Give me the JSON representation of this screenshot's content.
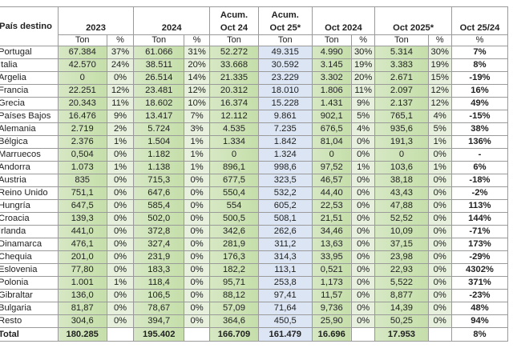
{
  "table": {
    "headers": {
      "country": "País destino",
      "y2023": "2023",
      "y2024": "2024",
      "acum24_line1": "Acum.",
      "acum24_line2": "Oct 24",
      "acum25_line1": "Acum.",
      "acum25_line2": "Oct 25*",
      "oct2024": "Oct 2024",
      "oct2025": "Oct 2025*",
      "var": "Oct 25/24"
    },
    "subheaders": {
      "ton": "Ton",
      "pct": "%"
    },
    "rows": [
      {
        "country": "Portugal",
        "t2023": "67.384",
        "p2023": "37%",
        "t2024": "61.066",
        "p2024": "31%",
        "acum24": "52.272",
        "acum25": "49.315",
        "toct24": "4.990",
        "poct24": "30%",
        "toct25": "5.314",
        "poct25": "30%",
        "var": "7%"
      },
      {
        "country": "Italia",
        "t2023": "42.570",
        "p2023": "24%",
        "t2024": "38.511",
        "p2024": "20%",
        "acum24": "33.668",
        "acum25": "30.592",
        "toct24": "3.145",
        "poct24": "19%",
        "toct25": "3.383",
        "poct25": "19%",
        "var": "8%"
      },
      {
        "country": "Argelia",
        "t2023": "0",
        "p2023": "0%",
        "t2024": "26.514",
        "p2024": "14%",
        "acum24": "21.335",
        "acum25": "23.229",
        "toct24": "3.302",
        "poct24": "20%",
        "toct25": "2.671",
        "poct25": "15%",
        "var": "-19%"
      },
      {
        "country": "Francia",
        "t2023": "22.251",
        "p2023": "12%",
        "t2024": "23.481",
        "p2024": "12%",
        "acum24": "20.312",
        "acum25": "18.010",
        "toct24": "1.806",
        "poct24": "11%",
        "toct25": "2.097",
        "poct25": "12%",
        "var": "16%"
      },
      {
        "country": "Grecia",
        "t2023": "20.343",
        "p2023": "11%",
        "t2024": "18.602",
        "p2024": "10%",
        "acum24": "16.374",
        "acum25": "15.228",
        "toct24": "1.431",
        "poct24": "9%",
        "toct25": "2.137",
        "poct25": "12%",
        "var": "49%"
      },
      {
        "country": "Países Bajos",
        "t2023": "16.476",
        "p2023": "9%",
        "t2024": "13.417",
        "p2024": "7%",
        "acum24": "12.112",
        "acum25": "9.861",
        "toct24": "902,1",
        "poct24": "5%",
        "toct25": "765,1",
        "poct25": "4%",
        "var": "-15%"
      },
      {
        "country": "Alemania",
        "t2023": "2.719",
        "p2023": "2%",
        "t2024": "5.724",
        "p2024": "3%",
        "acum24": "4.535",
        "acum25": "7.235",
        "toct24": "676,5",
        "poct24": "4%",
        "toct25": "935,6",
        "poct25": "5%",
        "var": "38%"
      },
      {
        "country": "Bélgica",
        "t2023": "2.376",
        "p2023": "1%",
        "t2024": "1.504",
        "p2024": "1%",
        "acum24": "1.334",
        "acum25": "1.842",
        "toct24": "81,04",
        "poct24": "0%",
        "toct25": "191,3",
        "poct25": "1%",
        "var": "136%"
      },
      {
        "country": "Marruecos",
        "t2023": "0,504",
        "p2023": "0%",
        "t2024": "1.182",
        "p2024": "1%",
        "acum24": "0",
        "acum25": "1.324",
        "toct24": "0",
        "poct24": "0%",
        "toct25": "0",
        "poct25": "0%",
        "var": "-"
      },
      {
        "country": "Andorra",
        "t2023": "1.073",
        "p2023": "1%",
        "t2024": "1.138",
        "p2024": "1%",
        "acum24": "896,1",
        "acum25": "998,6",
        "toct24": "97,52",
        "poct24": "1%",
        "toct25": "103,6",
        "poct25": "1%",
        "var": "6%"
      },
      {
        "country": "Austria",
        "t2023": "835",
        "p2023": "0%",
        "t2024": "715,3",
        "p2024": "0%",
        "acum24": "677,5",
        "acum25": "323,5",
        "toct24": "46,57",
        "poct24": "0%",
        "toct25": "38,18",
        "poct25": "0%",
        "var": "-18%"
      },
      {
        "country": "Reino Unido",
        "t2023": "751,1",
        "p2023": "0%",
        "t2024": "647,6",
        "p2024": "0%",
        "acum24": "550,4",
        "acum25": "532,2",
        "toct24": "44,40",
        "poct24": "0%",
        "toct25": "43,43",
        "poct25": "0%",
        "var": "-2%"
      },
      {
        "country": "Hungría",
        "t2023": "647,5",
        "p2023": "0%",
        "t2024": "585,4",
        "p2024": "0%",
        "acum24": "554",
        "acum25": "605,2",
        "toct24": "22,53",
        "poct24": "0%",
        "toct25": "47,88",
        "poct25": "0%",
        "var": "113%"
      },
      {
        "country": "Croacia",
        "t2023": "139,3",
        "p2023": "0%",
        "t2024": "502,0",
        "p2024": "0%",
        "acum24": "500,5",
        "acum25": "508,1",
        "toct24": "21,51",
        "poct24": "0%",
        "toct25": "52,52",
        "poct25": "0%",
        "var": "144%"
      },
      {
        "country": "Irlanda",
        "t2023": "441,0",
        "p2023": "0%",
        "t2024": "372,8",
        "p2024": "0%",
        "acum24": "342,6",
        "acum25": "262,6",
        "toct24": "34,46",
        "poct24": "0%",
        "toct25": "10,09",
        "poct25": "0%",
        "var": "-71%"
      },
      {
        "country": "Dinamarca",
        "t2023": "476,1",
        "p2023": "0%",
        "t2024": "327,4",
        "p2024": "0%",
        "acum24": "281,9",
        "acum25": "311,2",
        "toct24": "13,63",
        "poct24": "0%",
        "toct25": "37,15",
        "poct25": "0%",
        "var": "173%"
      },
      {
        "country": "Chequia",
        "t2023": "201,0",
        "p2023": "0%",
        "t2024": "231,9",
        "p2024": "0%",
        "acum24": "176,3",
        "acum25": "314,3",
        "toct24": "33,95",
        "poct24": "0%",
        "toct25": "23,98",
        "poct25": "0%",
        "var": "-29%"
      },
      {
        "country": "Eslovenia",
        "t2023": "77,80",
        "p2023": "0%",
        "t2024": "183,3",
        "p2024": "0%",
        "acum24": "182,2",
        "acum25": "113,1",
        "toct24": "0,521",
        "poct24": "0%",
        "toct25": "22,93",
        "poct25": "0%",
        "var": "4302%"
      },
      {
        "country": "Polonia",
        "t2023": "1.001",
        "p2023": "1%",
        "t2024": "118,4",
        "p2024": "0%",
        "acum24": "95,71",
        "acum25": "253,8",
        "toct24": "1,173",
        "poct24": "0%",
        "toct25": "5,522",
        "poct25": "0%",
        "var": "371%"
      },
      {
        "country": "Gibraltar",
        "t2023": "136,0",
        "p2023": "0%",
        "t2024": "106,5",
        "p2024": "0%",
        "acum24": "88,12",
        "acum25": "97,41",
        "toct24": "11,57",
        "poct24": "0%",
        "toct25": "8,877",
        "poct25": "0%",
        "var": "-23%"
      },
      {
        "country": "Bulgaria",
        "t2023": "81,87",
        "p2023": "0%",
        "t2024": "78,67",
        "p2024": "0%",
        "acum24": "57,09",
        "acum25": "71,64",
        "toct24": "9,736",
        "poct24": "0%",
        "toct25": "14,39",
        "poct25": "0%",
        "var": "48%"
      },
      {
        "country": "Resto",
        "t2023": "304,6",
        "p2023": "0%",
        "t2024": "394,7",
        "p2024": "0%",
        "acum24": "364,6",
        "acum25": "450,5",
        "toct24": "25,90",
        "poct24": "0%",
        "toct25": "50,25",
        "poct25": "0%",
        "var": "94%"
      }
    ],
    "total": {
      "country": "Total",
      "t2023": "180.285",
      "t2024": "195.402",
      "acum24": "166.709",
      "acum25": "161.479",
      "toct24": "16.696",
      "toct25": "17.953",
      "var": "8%"
    }
  }
}
